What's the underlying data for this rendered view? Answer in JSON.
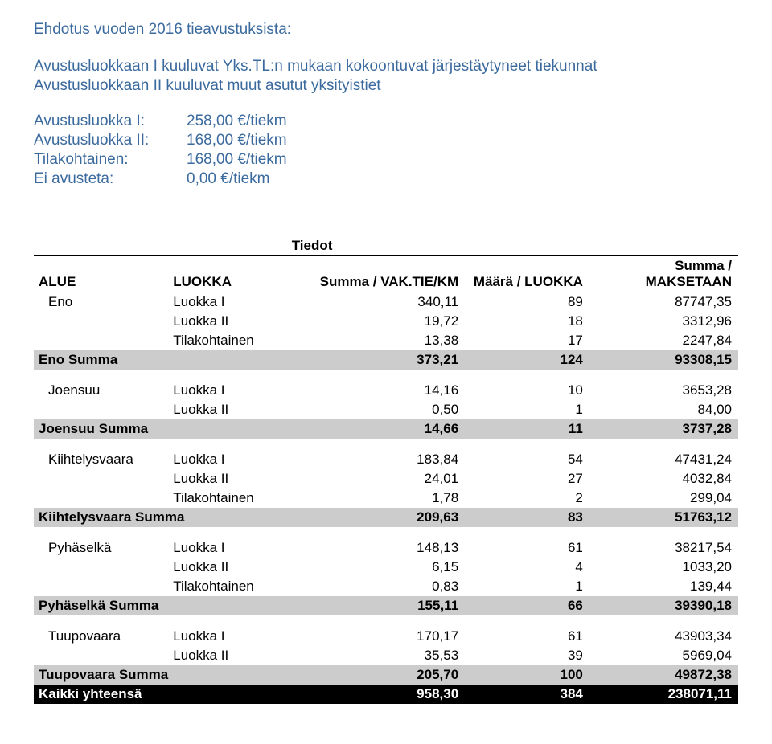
{
  "heading": "Ehdotus vuoden 2016 tieavustuksista:",
  "intro_line1": "Avustusluokkaan I kuuluvat Yks.TL:n mukaan kokoontuvat järjestäytyneet tiekunnat",
  "intro_line2": "Avustusluokkaan II kuuluvat muut asutut yksityistiet",
  "rates": [
    {
      "label": "Avustusluokka I:",
      "value": "258,00 €/tiekm"
    },
    {
      "label": "Avustusluokka II:",
      "value": "168,00 €/tiekm"
    },
    {
      "label": "Tilakohtainen:",
      "value": "168,00 €/tiekm"
    },
    {
      "label": "Ei avusteta:",
      "value": "0,00 €/tiekm"
    }
  ],
  "table": {
    "tiedot_label": "Tiedot",
    "headers": {
      "alue": "ALUE",
      "luokka": "LUOKKA",
      "summa": "Summa / VAK.TIE/KM",
      "maara": "Määrä / LUOKKA",
      "maksetaan": "Summa / MAKSETAAN"
    },
    "regions": [
      {
        "name": "Eno",
        "rows": [
          {
            "luokka": "Luokka I",
            "km": "340,11",
            "n": "89",
            "eur": "87747,35"
          },
          {
            "luokka": "Luokka II",
            "km": "19,72",
            "n": "18",
            "eur": "3312,96"
          },
          {
            "luokka": "Tilakohtainen",
            "km": "13,38",
            "n": "17",
            "eur": "2247,84"
          }
        ],
        "sum_label": "Eno Summa",
        "sum": {
          "km": "373,21",
          "n": "124",
          "eur": "93308,15"
        }
      },
      {
        "name": "Joensuu",
        "rows": [
          {
            "luokka": "Luokka I",
            "km": "14,16",
            "n": "10",
            "eur": "3653,28"
          },
          {
            "luokka": "Luokka II",
            "km": "0,50",
            "n": "1",
            "eur": "84,00"
          }
        ],
        "sum_label": "Joensuu Summa",
        "sum": {
          "km": "14,66",
          "n": "11",
          "eur": "3737,28"
        }
      },
      {
        "name": "Kiihtelysvaara",
        "rows": [
          {
            "luokka": "Luokka I",
            "km": "183,84",
            "n": "54",
            "eur": "47431,24"
          },
          {
            "luokka": "Luokka II",
            "km": "24,01",
            "n": "27",
            "eur": "4032,84"
          },
          {
            "luokka": "Tilakohtainen",
            "km": "1,78",
            "n": "2",
            "eur": "299,04"
          }
        ],
        "sum_label": "Kiihtelysvaara Summa",
        "sum": {
          "km": "209,63",
          "n": "83",
          "eur": "51763,12"
        }
      },
      {
        "name": "Pyhäselkä",
        "rows": [
          {
            "luokka": "Luokka I",
            "km": "148,13",
            "n": "61",
            "eur": "38217,54"
          },
          {
            "luokka": "Luokka II",
            "km": "6,15",
            "n": "4",
            "eur": "1033,20"
          },
          {
            "luokka": "Tilakohtainen",
            "km": "0,83",
            "n": "1",
            "eur": "139,44"
          }
        ],
        "sum_label": "Pyhäselkä Summa",
        "sum": {
          "km": "155,11",
          "n": "66",
          "eur": "39390,18"
        }
      },
      {
        "name": "Tuupovaara",
        "rows": [
          {
            "luokka": "Luokka I",
            "km": "170,17",
            "n": "61",
            "eur": "43903,34"
          },
          {
            "luokka": "Luokka II",
            "km": "35,53",
            "n": "39",
            "eur": "5969,04"
          }
        ],
        "sum_label": "Tuupovaara Summa",
        "sum": {
          "km": "205,70",
          "n": "100",
          "eur": "49872,38"
        }
      }
    ],
    "grand_label": "Kaikki yhteensä",
    "grand": {
      "km": "958,30",
      "n": "384",
      "eur": "238071,11"
    },
    "style": {
      "header_bg": "#ffffff",
      "region_sum_bg": "#cccccc",
      "grand_bg": "#000000",
      "grand_fg": "#ffffff",
      "font_size": 17,
      "heading_color": "#3b6a9e"
    }
  }
}
